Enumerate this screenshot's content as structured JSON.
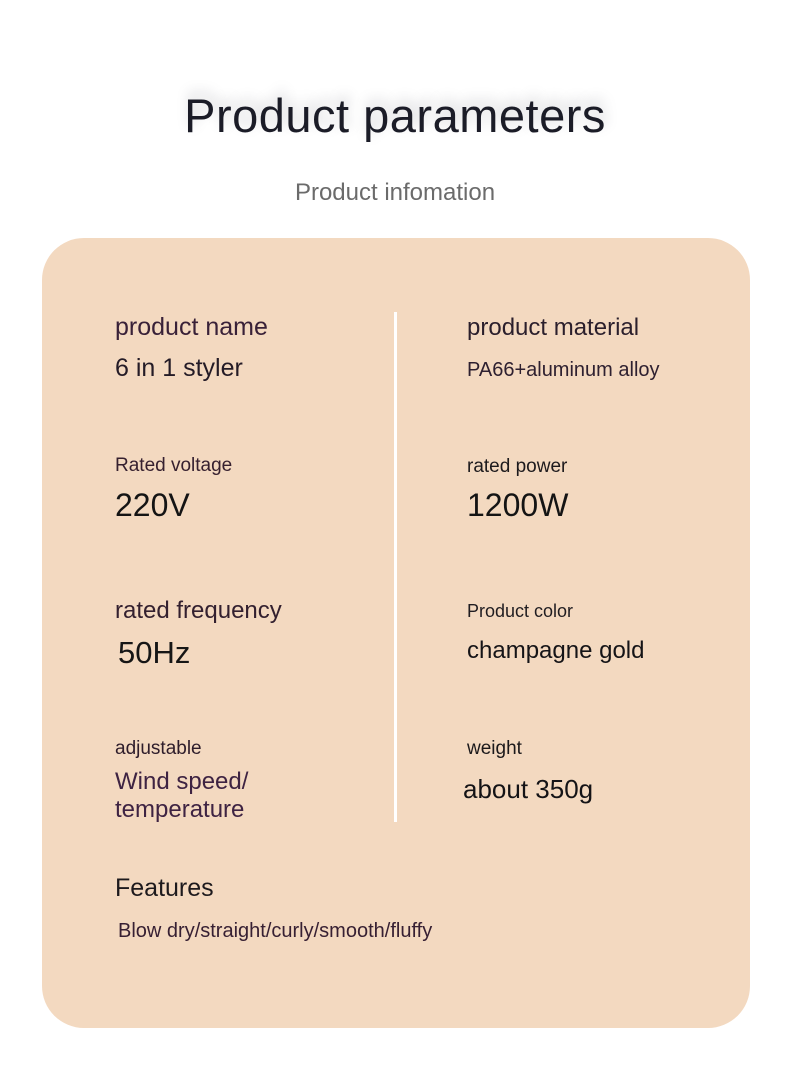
{
  "header": {
    "title": "Product parameters",
    "subtitle": "Product infomation"
  },
  "colors": {
    "page_background": "#ffffff",
    "card_background": "#f3d9c0",
    "title_text": "#1b1c27",
    "subtitle_text": "#6b6b6b",
    "label_plum": "#392138",
    "value_dark": "#141316",
    "divider": "#ffffff"
  },
  "card": {
    "specs_left": [
      {
        "label": "product name",
        "value": "6 in 1 styler"
      },
      {
        "label": "Rated voltage",
        "value": "220V"
      },
      {
        "label": "rated frequency",
        "value": "50Hz"
      },
      {
        "label": "adjustable",
        "value": "Wind speed/temperature",
        "value_lines": [
          "Wind speed/",
          "temperature"
        ]
      }
    ],
    "specs_right": [
      {
        "label": "product material",
        "value": "PA66+aluminum alloy"
      },
      {
        "label": "rated power",
        "value": "1200W"
      },
      {
        "label": "Product color",
        "value": "champagne gold"
      },
      {
        "label": "weight",
        "value": "about 350g"
      }
    ],
    "features": {
      "label": "Features",
      "value": "Blow dry/straight/curly/smooth/fluffy"
    }
  }
}
